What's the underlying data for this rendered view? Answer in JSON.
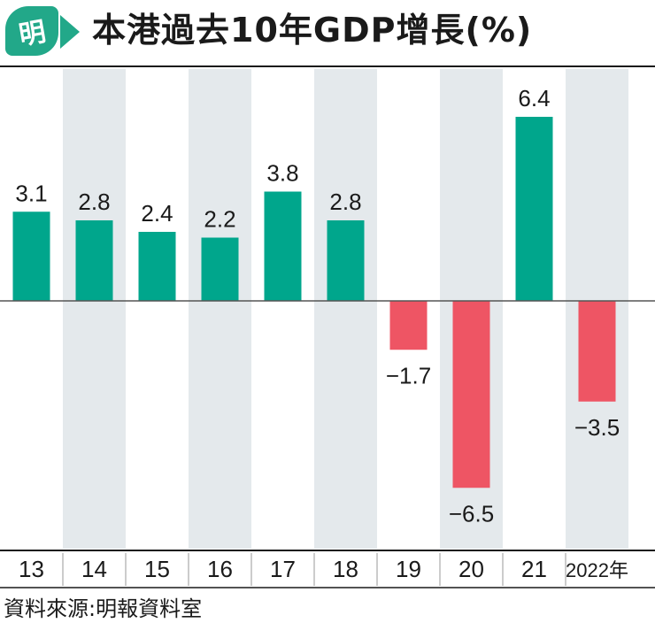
{
  "header": {
    "logo_text": "明",
    "title": "本港過去10年GDP增長(%)"
  },
  "chart_data": {
    "type": "bar",
    "title": "本港過去10年GDP增長(%)",
    "categories": [
      "13",
      "14",
      "15",
      "16",
      "17",
      "18",
      "19",
      "20",
      "21",
      "2022年"
    ],
    "values": [
      3.1,
      2.8,
      2.4,
      2.2,
      3.8,
      2.8,
      -1.7,
      -6.5,
      6.4,
      -3.5
    ],
    "value_labels": [
      "3.1",
      "2.8",
      "2.4",
      "2.2",
      "3.8",
      "2.8",
      "−1.7",
      "−6.5",
      "6.4",
      "−3.5"
    ],
    "xlabel": "",
    "ylabel": "",
    "ylim": [
      -8.2,
      8.2
    ],
    "grid": false,
    "legend": "none",
    "colors": {
      "positive": "#00a68c",
      "negative": "#ee5564",
      "alt_column_bg": "#e4e9ec",
      "axis": "#555555",
      "brand": "#22a889"
    }
  },
  "footer": {
    "source": "資料來源:明報資料室"
  }
}
